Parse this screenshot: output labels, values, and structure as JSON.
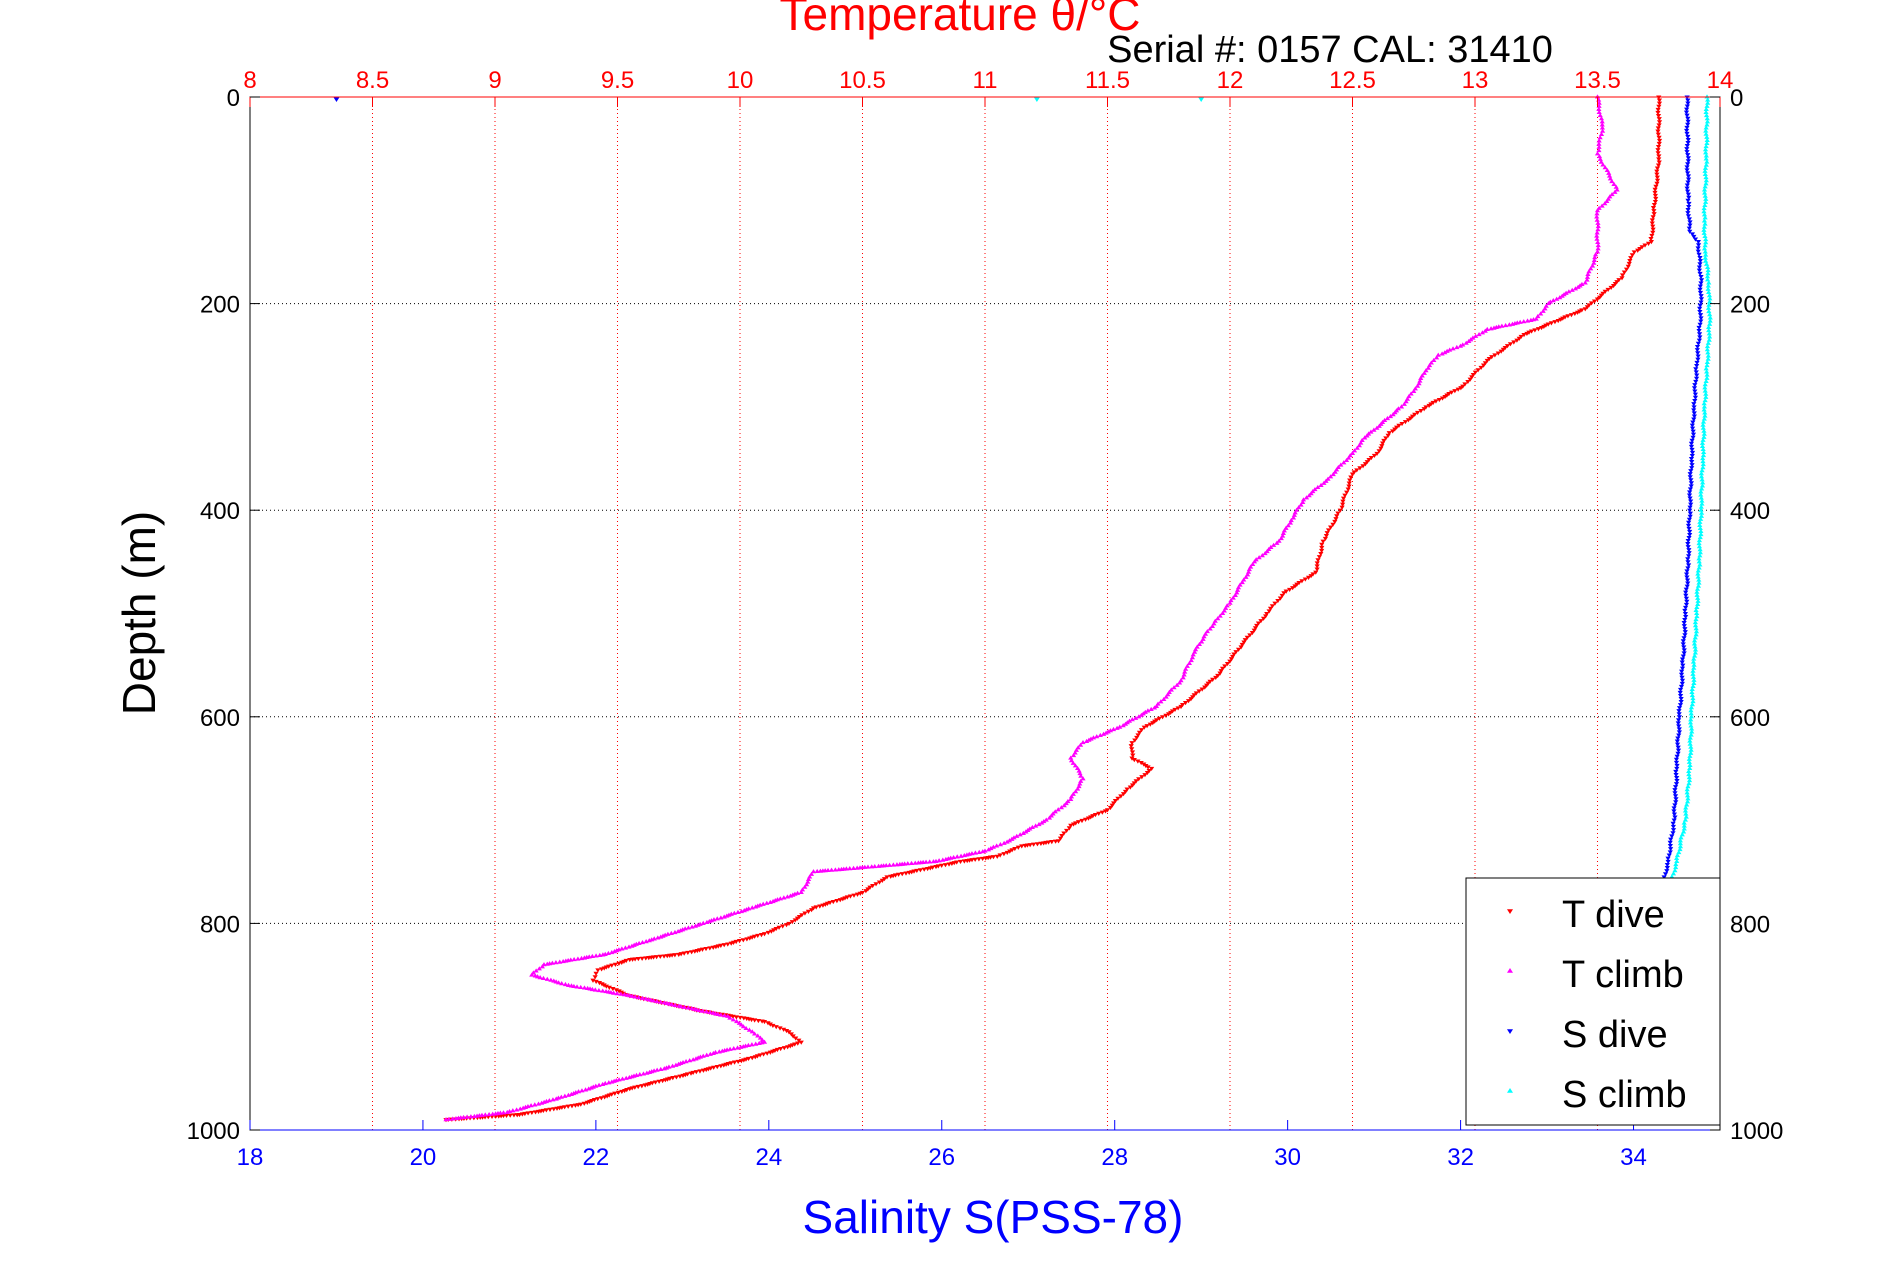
{
  "chart_data": {
    "type": "scatter",
    "title": "Temperature θ/°C",
    "subtitle": "Serial #: 0157  CAL: 31410",
    "xlabel": "Salinity S(PSS-78)",
    "ylabel": "Depth (m)",
    "temperature_axis": {
      "range": [
        8,
        14
      ],
      "ticks": [
        "8",
        "8.5",
        "9",
        "9.5",
        "10",
        "10.5",
        "11",
        "11.5",
        "12",
        "12.5",
        "13",
        "13.5",
        "14"
      ],
      "color": "#ff0000"
    },
    "salinity_axis": {
      "range": [
        18,
        35
      ],
      "ticks": [
        "18",
        "20",
        "22",
        "24",
        "26",
        "28",
        "30",
        "32",
        "34"
      ],
      "color": "#0000ff"
    },
    "depth_axis": {
      "range": [
        0,
        1000
      ],
      "reversed": true,
      "ticks": [
        "0",
        "200",
        "400",
        "600",
        "800",
        "1000"
      ]
    },
    "grid": true,
    "legend_position": "bottom-right",
    "series": [
      {
        "name": "T dive",
        "axis": "temperature",
        "color": "#ff0000",
        "marker": "triangle-down",
        "points": [
          {
            "x": 13.75,
            "y": 0
          },
          {
            "x": 13.75,
            "y": 60
          },
          {
            "x": 13.73,
            "y": 110
          },
          {
            "x": 13.72,
            "y": 140
          },
          {
            "x": 13.65,
            "y": 150
          },
          {
            "x": 13.6,
            "y": 175
          },
          {
            "x": 13.45,
            "y": 205
          },
          {
            "x": 13.2,
            "y": 230
          },
          {
            "x": 13.05,
            "y": 255
          },
          {
            "x": 12.95,
            "y": 280
          },
          {
            "x": 12.8,
            "y": 300
          },
          {
            "x": 12.65,
            "y": 325
          },
          {
            "x": 12.6,
            "y": 345
          },
          {
            "x": 12.5,
            "y": 365
          },
          {
            "x": 12.45,
            "y": 400
          },
          {
            "x": 12.38,
            "y": 430
          },
          {
            "x": 12.35,
            "y": 460
          },
          {
            "x": 12.22,
            "y": 480
          },
          {
            "x": 12.15,
            "y": 500
          },
          {
            "x": 12.05,
            "y": 530
          },
          {
            "x": 11.95,
            "y": 560
          },
          {
            "x": 11.8,
            "y": 590
          },
          {
            "x": 11.65,
            "y": 610
          },
          {
            "x": 11.6,
            "y": 625
          },
          {
            "x": 11.6,
            "y": 640
          },
          {
            "x": 11.68,
            "y": 650
          },
          {
            "x": 11.58,
            "y": 670
          },
          {
            "x": 11.5,
            "y": 690
          },
          {
            "x": 11.35,
            "y": 705
          },
          {
            "x": 11.3,
            "y": 720
          },
          {
            "x": 11.15,
            "y": 725
          },
          {
            "x": 11.05,
            "y": 735
          },
          {
            "x": 10.9,
            "y": 740
          },
          {
            "x": 10.8,
            "y": 745
          },
          {
            "x": 10.6,
            "y": 755
          },
          {
            "x": 10.5,
            "y": 770
          },
          {
            "x": 10.3,
            "y": 785
          },
          {
            "x": 10.2,
            "y": 800
          },
          {
            "x": 10.1,
            "y": 810
          },
          {
            "x": 9.95,
            "y": 820
          },
          {
            "x": 9.75,
            "y": 830
          },
          {
            "x": 9.55,
            "y": 835
          },
          {
            "x": 9.42,
            "y": 845
          },
          {
            "x": 9.4,
            "y": 855
          },
          {
            "x": 9.55,
            "y": 870
          },
          {
            "x": 9.85,
            "y": 885
          },
          {
            "x": 10.1,
            "y": 895
          },
          {
            "x": 10.2,
            "y": 905
          },
          {
            "x": 10.25,
            "y": 915
          },
          {
            "x": 10.05,
            "y": 930
          },
          {
            "x": 9.8,
            "y": 945
          },
          {
            "x": 9.55,
            "y": 960
          },
          {
            "x": 9.35,
            "y": 975
          },
          {
            "x": 9.1,
            "y": 985
          },
          {
            "x": 8.8,
            "y": 990
          }
        ]
      },
      {
        "name": "T climb",
        "axis": "temperature",
        "color": "#ff00ff",
        "marker": "triangle-up",
        "points": [
          {
            "x": 13.5,
            "y": 0
          },
          {
            "x": 13.52,
            "y": 30
          },
          {
            "x": 13.5,
            "y": 55
          },
          {
            "x": 13.58,
            "y": 90
          },
          {
            "x": 13.5,
            "y": 110
          },
          {
            "x": 13.5,
            "y": 150
          },
          {
            "x": 13.45,
            "y": 180
          },
          {
            "x": 13.3,
            "y": 200
          },
          {
            "x": 13.25,
            "y": 215
          },
          {
            "x": 13.05,
            "y": 225
          },
          {
            "x": 12.95,
            "y": 240
          },
          {
            "x": 12.85,
            "y": 250
          },
          {
            "x": 12.8,
            "y": 265
          },
          {
            "x": 12.75,
            "y": 285
          },
          {
            "x": 12.7,
            "y": 300
          },
          {
            "x": 12.55,
            "y": 330
          },
          {
            "x": 12.5,
            "y": 345
          },
          {
            "x": 12.4,
            "y": 370
          },
          {
            "x": 12.3,
            "y": 390
          },
          {
            "x": 12.25,
            "y": 410
          },
          {
            "x": 12.2,
            "y": 430
          },
          {
            "x": 12.1,
            "y": 450
          },
          {
            "x": 12.05,
            "y": 470
          },
          {
            "x": 12.0,
            "y": 490
          },
          {
            "x": 11.95,
            "y": 505
          },
          {
            "x": 11.9,
            "y": 520
          },
          {
            "x": 11.85,
            "y": 540
          },
          {
            "x": 11.8,
            "y": 565
          },
          {
            "x": 11.7,
            "y": 590
          },
          {
            "x": 11.55,
            "y": 610
          },
          {
            "x": 11.4,
            "y": 625
          },
          {
            "x": 11.35,
            "y": 640
          },
          {
            "x": 11.4,
            "y": 660
          },
          {
            "x": 11.35,
            "y": 680
          },
          {
            "x": 11.25,
            "y": 700
          },
          {
            "x": 11.1,
            "y": 720
          },
          {
            "x": 11.0,
            "y": 730
          },
          {
            "x": 10.8,
            "y": 740
          },
          {
            "x": 10.55,
            "y": 745
          },
          {
            "x": 10.3,
            "y": 750
          },
          {
            "x": 10.25,
            "y": 770
          },
          {
            "x": 10.05,
            "y": 785
          },
          {
            "x": 9.85,
            "y": 800
          },
          {
            "x": 9.65,
            "y": 815
          },
          {
            "x": 9.45,
            "y": 830
          },
          {
            "x": 9.2,
            "y": 840
          },
          {
            "x": 9.15,
            "y": 850
          },
          {
            "x": 9.3,
            "y": 860
          },
          {
            "x": 9.55,
            "y": 870
          },
          {
            "x": 9.75,
            "y": 880
          },
          {
            "x": 9.95,
            "y": 890
          },
          {
            "x": 10.05,
            "y": 905
          },
          {
            "x": 10.1,
            "y": 915
          },
          {
            "x": 9.9,
            "y": 925
          },
          {
            "x": 9.7,
            "y": 940
          },
          {
            "x": 9.45,
            "y": 955
          },
          {
            "x": 9.25,
            "y": 970
          },
          {
            "x": 9.05,
            "y": 983
          },
          {
            "x": 8.8,
            "y": 990
          }
        ]
      },
      {
        "name": "S dive",
        "axis": "salinity",
        "color": "#0000ff",
        "marker": "triangle-down",
        "points": [
          {
            "x": 34.62,
            "y": 0
          },
          {
            "x": 34.63,
            "y": 100
          },
          {
            "x": 34.65,
            "y": 130
          },
          {
            "x": 34.75,
            "y": 140
          },
          {
            "x": 34.78,
            "y": 180
          },
          {
            "x": 34.77,
            "y": 220
          },
          {
            "x": 34.73,
            "y": 260
          },
          {
            "x": 34.7,
            "y": 300
          },
          {
            "x": 34.67,
            "y": 350
          },
          {
            "x": 34.65,
            "y": 400
          },
          {
            "x": 34.63,
            "y": 450
          },
          {
            "x": 34.6,
            "y": 500
          },
          {
            "x": 34.57,
            "y": 550
          },
          {
            "x": 34.53,
            "y": 600
          },
          {
            "x": 34.5,
            "y": 650
          },
          {
            "x": 34.47,
            "y": 700
          },
          {
            "x": 34.4,
            "y": 740
          },
          {
            "x": 34.32,
            "y": 770
          },
          {
            "x": 34.25,
            "y": 800
          },
          {
            "x": 34.2,
            "y": 850
          },
          {
            "x": 34.15,
            "y": 900
          },
          {
            "x": 34.1,
            "y": 950
          },
          {
            "x": 34.05,
            "y": 990
          }
        ]
      },
      {
        "name": "S climb",
        "axis": "salinity",
        "color": "#00ffff",
        "marker": "triangle-up",
        "points": [
          {
            "x": 34.85,
            "y": 0
          },
          {
            "x": 34.84,
            "y": 60
          },
          {
            "x": 34.82,
            "y": 120
          },
          {
            "x": 34.83,
            "y": 150
          },
          {
            "x": 34.87,
            "y": 180
          },
          {
            "x": 34.88,
            "y": 220
          },
          {
            "x": 34.85,
            "y": 260
          },
          {
            "x": 34.82,
            "y": 300
          },
          {
            "x": 34.8,
            "y": 350
          },
          {
            "x": 34.78,
            "y": 400
          },
          {
            "x": 34.76,
            "y": 450
          },
          {
            "x": 34.73,
            "y": 500
          },
          {
            "x": 34.7,
            "y": 550
          },
          {
            "x": 34.67,
            "y": 600
          },
          {
            "x": 34.65,
            "y": 650
          },
          {
            "x": 34.6,
            "y": 700
          },
          {
            "x": 34.5,
            "y": 740
          },
          {
            "x": 34.4,
            "y": 770
          },
          {
            "x": 34.35,
            "y": 800
          },
          {
            "x": 34.28,
            "y": 850
          },
          {
            "x": 34.2,
            "y": 900
          },
          {
            "x": 34.15,
            "y": 950
          },
          {
            "x": 34.1,
            "y": 990
          }
        ]
      }
    ],
    "annotations": [
      {
        "label": "stray point",
        "axis": "salinity",
        "x": 19.0,
        "y": 0,
        "color": "#0000ff"
      },
      {
        "label": "stray point",
        "axis": "salinity",
        "x": 27.1,
        "y": 0,
        "color": "#00ffff"
      },
      {
        "label": "stray point",
        "axis": "salinity",
        "x": 29.0,
        "y": 0,
        "color": "#00ffff"
      }
    ]
  }
}
